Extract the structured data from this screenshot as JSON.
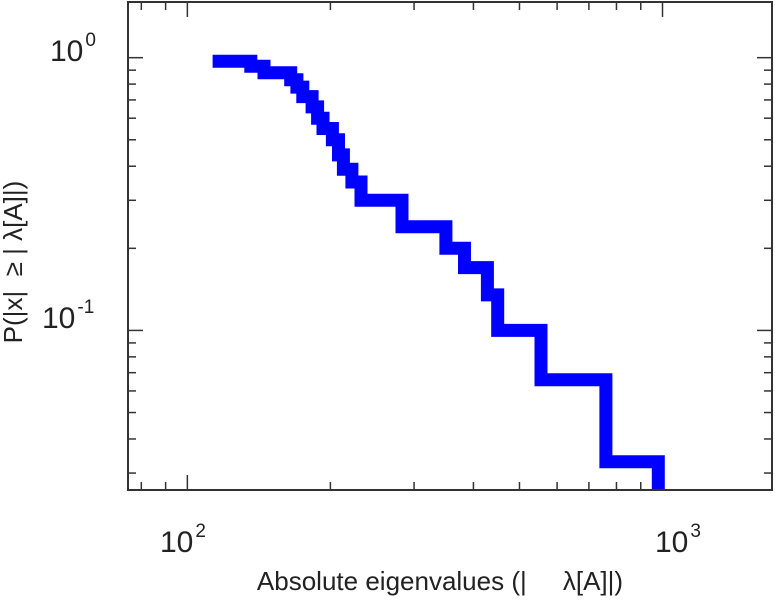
{
  "chart_data": {
    "type": "line",
    "subtype": "step-ccdf",
    "xscale": "log",
    "yscale": "log",
    "xlim": [
      75,
      1700
    ],
    "ylim": [
      0.026,
      1.6
    ],
    "xlabel": "Absolute eigenvalues (|     λ[A]|)",
    "ylabel": "P(|x|  ≥ | λ[A]|)",
    "x_ticks": [
      {
        "base": "10",
        "exp": "2"
      },
      {
        "base": "10",
        "exp": "3"
      }
    ],
    "y_ticks": [
      {
        "base": "10",
        "exp": "0"
      },
      {
        "base": "10",
        "exp": "-1"
      }
    ],
    "grid": false,
    "series": [
      {
        "color": "#0000ff",
        "points": [
          [
            113,
            0.97
          ],
          [
            136,
            0.97
          ],
          [
            136,
            0.93
          ],
          [
            145,
            0.93
          ],
          [
            145,
            0.88
          ],
          [
            165,
            0.88
          ],
          [
            165,
            0.83
          ],
          [
            170,
            0.83
          ],
          [
            170,
            0.78
          ],
          [
            175,
            0.78
          ],
          [
            175,
            0.72
          ],
          [
            183,
            0.72
          ],
          [
            183,
            0.66
          ],
          [
            188,
            0.66
          ],
          [
            188,
            0.6
          ],
          [
            193,
            0.6
          ],
          [
            193,
            0.55
          ],
          [
            202,
            0.55
          ],
          [
            202,
            0.5
          ],
          [
            208,
            0.5
          ],
          [
            208,
            0.44
          ],
          [
            213,
            0.44
          ],
          [
            213,
            0.39
          ],
          [
            222,
            0.39
          ],
          [
            222,
            0.35
          ],
          [
            232,
            0.35
          ],
          [
            232,
            0.3
          ],
          [
            283,
            0.3
          ],
          [
            283,
            0.24
          ],
          [
            350,
            0.24
          ],
          [
            350,
            0.2
          ],
          [
            383,
            0.2
          ],
          [
            383,
            0.17
          ],
          [
            428,
            0.17
          ],
          [
            428,
            0.135
          ],
          [
            450,
            0.135
          ],
          [
            450,
            0.1
          ],
          [
            555,
            0.1
          ],
          [
            555,
            0.066
          ],
          [
            760,
            0.066
          ],
          [
            760,
            0.033
          ],
          [
            980,
            0.033
          ],
          [
            980,
            0.026
          ]
        ]
      }
    ]
  }
}
